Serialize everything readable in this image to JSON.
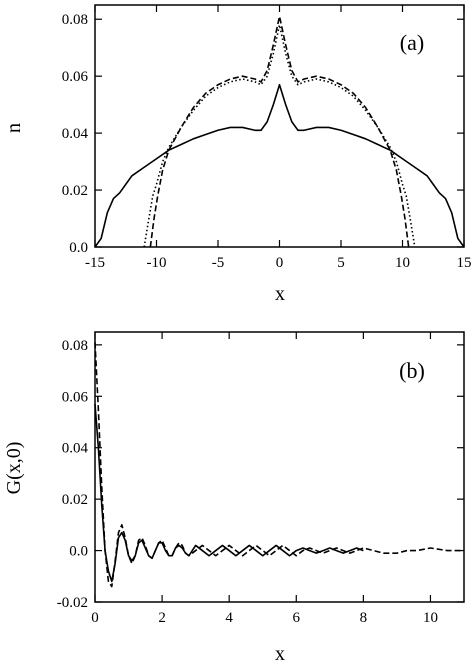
{
  "chart_data": [
    {
      "type": "line",
      "panel_label": "(a)",
      "xlabel": "x",
      "ylabel": "n",
      "xlim": [
        -15,
        15
      ],
      "ylim": [
        0,
        0.085
      ],
      "xticks": [
        -15,
        -10,
        -5,
        0,
        5,
        10,
        15
      ],
      "xtick_labels": [
        "-15",
        "-10",
        "-5",
        "0",
        "5",
        "10",
        "15"
      ],
      "yticks": [
        0,
        0.02,
        0.04,
        0.06,
        0.08
      ],
      "ytick_labels": [
        "0.0",
        "0.02",
        "0.04",
        "0.06",
        "0.08"
      ],
      "series": [
        {
          "style": "solid",
          "points": [
            [
              -15,
              0
            ],
            [
              -14.5,
              0.003
            ],
            [
              -14,
              0.012
            ],
            [
              -13.5,
              0.017
            ],
            [
              -13,
              0.019
            ],
            [
              -12.5,
              0.022
            ],
            [
              -12,
              0.025
            ],
            [
              -11,
              0.028
            ],
            [
              -10,
              0.031
            ],
            [
              -9,
              0.034
            ],
            [
              -8,
              0.036
            ],
            [
              -7,
              0.038
            ],
            [
              -6,
              0.0395
            ],
            [
              -5,
              0.041
            ],
            [
              -4,
              0.042
            ],
            [
              -3,
              0.042
            ],
            [
              -2,
              0.041
            ],
            [
              -1.5,
              0.041
            ],
            [
              -1,
              0.044
            ],
            [
              -0.5,
              0.05
            ],
            [
              0,
              0.057
            ],
            [
              0.5,
              0.05
            ],
            [
              1,
              0.044
            ],
            [
              1.5,
              0.041
            ],
            [
              2,
              0.041
            ],
            [
              3,
              0.042
            ],
            [
              4,
              0.042
            ],
            [
              5,
              0.041
            ],
            [
              6,
              0.0395
            ],
            [
              7,
              0.038
            ],
            [
              8,
              0.036
            ],
            [
              9,
              0.034
            ],
            [
              10,
              0.031
            ],
            [
              11,
              0.028
            ],
            [
              12,
              0.025
            ],
            [
              12.5,
              0.022
            ],
            [
              13,
              0.019
            ],
            [
              13.5,
              0.017
            ],
            [
              14,
              0.012
            ],
            [
              14.5,
              0.003
            ],
            [
              15,
              0
            ]
          ]
        },
        {
          "style": "dotted",
          "points": [
            [
              -11,
              0
            ],
            [
              -10.7,
              0.008
            ],
            [
              -10.3,
              0.018
            ],
            [
              -10,
              0.022
            ],
            [
              -9.5,
              0.03
            ],
            [
              -9,
              0.035
            ],
            [
              -8,
              0.042
            ],
            [
              -7,
              0.048
            ],
            [
              -6,
              0.053
            ],
            [
              -5,
              0.056
            ],
            [
              -4,
              0.058
            ],
            [
              -3,
              0.059
            ],
            [
              -2,
              0.058
            ],
            [
              -1.5,
              0.057
            ],
            [
              -1,
              0.06
            ],
            [
              -0.5,
              0.068
            ],
            [
              0,
              0.078
            ],
            [
              0.5,
              0.068
            ],
            [
              1,
              0.06
            ],
            [
              1.5,
              0.057
            ],
            [
              2,
              0.058
            ],
            [
              3,
              0.059
            ],
            [
              4,
              0.058
            ],
            [
              5,
              0.056
            ],
            [
              6,
              0.053
            ],
            [
              7,
              0.048
            ],
            [
              8,
              0.042
            ],
            [
              9,
              0.035
            ],
            [
              9.5,
              0.03
            ],
            [
              10,
              0.022
            ],
            [
              10.3,
              0.018
            ],
            [
              10.7,
              0.008
            ],
            [
              11,
              0
            ]
          ]
        },
        {
          "style": "dashed",
          "points": [
            [
              -10.5,
              0
            ],
            [
              -10.2,
              0.01
            ],
            [
              -9.9,
              0.018
            ],
            [
              -9.5,
              0.027
            ],
            [
              -9,
              0.034
            ],
            [
              -8,
              0.042
            ],
            [
              -7,
              0.049
            ],
            [
              -6,
              0.054
            ],
            [
              -5,
              0.057
            ],
            [
              -4,
              0.059
            ],
            [
              -3,
              0.06
            ],
            [
              -2,
              0.059
            ],
            [
              -1.5,
              0.058
            ],
            [
              -1,
              0.062
            ],
            [
              -0.5,
              0.071
            ],
            [
              0,
              0.081
            ],
            [
              0.5,
              0.071
            ],
            [
              1,
              0.062
            ],
            [
              1.5,
              0.058
            ],
            [
              2,
              0.059
            ],
            [
              3,
              0.06
            ],
            [
              4,
              0.059
            ],
            [
              5,
              0.057
            ],
            [
              6,
              0.054
            ],
            [
              7,
              0.049
            ],
            [
              8,
              0.042
            ],
            [
              9,
              0.034
            ],
            [
              9.5,
              0.027
            ],
            [
              9.9,
              0.018
            ],
            [
              10.2,
              0.01
            ],
            [
              10.5,
              0
            ]
          ]
        }
      ]
    },
    {
      "type": "line",
      "panel_label": "(b)",
      "xlabel": "x",
      "ylabel": "G(x,0)",
      "xlim": [
        0,
        11
      ],
      "ylim": [
        -0.02,
        0.085
      ],
      "xticks": [
        0,
        2,
        4,
        6,
        8,
        10
      ],
      "xtick_labels": [
        "0",
        "2",
        "4",
        "6",
        "8",
        "10"
      ],
      "yticks": [
        -0.02,
        0,
        0.02,
        0.04,
        0.06,
        0.08
      ],
      "ytick_labels": [
        "-0.02",
        "0.0",
        "0.02",
        "0.04",
        "0.06",
        "0.08"
      ],
      "series": [
        {
          "style": "solid",
          "points": [
            [
              0,
              0.057
            ],
            [
              0.1,
              0.04
            ],
            [
              0.2,
              0.018
            ],
            [
              0.3,
              0.0
            ],
            [
              0.4,
              -0.008
            ],
            [
              0.5,
              -0.012
            ],
            [
              0.6,
              -0.005
            ],
            [
              0.7,
              0.005
            ],
            [
              0.8,
              0.007
            ],
            [
              0.9,
              0.004
            ],
            [
              1.0,
              -0.002
            ],
            [
              1.1,
              -0.004
            ],
            [
              1.2,
              -0.002
            ],
            [
              1.3,
              0.003
            ],
            [
              1.4,
              0.004
            ],
            [
              1.5,
              0.001
            ],
            [
              1.6,
              -0.002
            ],
            [
              1.7,
              -0.003
            ],
            [
              1.8,
              0.0
            ],
            [
              1.9,
              0.003
            ],
            [
              2.0,
              0.003
            ],
            [
              2.1,
              0.0
            ],
            [
              2.2,
              -0.002
            ],
            [
              2.3,
              -0.002
            ],
            [
              2.4,
              0.001
            ],
            [
              2.5,
              0.002
            ],
            [
              2.6,
              0.001
            ],
            [
              2.7,
              -0.001
            ],
            [
              2.8,
              -0.002
            ],
            [
              2.9,
              0.0
            ],
            [
              3.0,
              0.002
            ],
            [
              3.2,
              0.0
            ],
            [
              3.4,
              -0.002
            ],
            [
              3.6,
              0.0
            ],
            [
              3.8,
              0.002
            ],
            [
              4.0,
              0.0
            ],
            [
              4.2,
              -0.002
            ],
            [
              4.4,
              0.0
            ],
            [
              4.6,
              0.002
            ],
            [
              4.8,
              0.0
            ],
            [
              5.0,
              -0.002
            ],
            [
              5.2,
              0.0
            ],
            [
              5.4,
              0.002
            ],
            [
              5.6,
              0.0
            ],
            [
              5.8,
              -0.002
            ],
            [
              6.0,
              0.0
            ],
            [
              6.2,
              0.001
            ],
            [
              6.4,
              0.0
            ],
            [
              6.6,
              -0.001
            ],
            [
              6.8,
              0.0
            ],
            [
              7.0,
              0.001
            ],
            [
              7.2,
              0.0
            ],
            [
              7.4,
              -0.001
            ],
            [
              7.6,
              0.0
            ],
            [
              7.8,
              0.001
            ],
            [
              8.0,
              0.0
            ]
          ]
        },
        {
          "style": "dashed",
          "points": [
            [
              0,
              0.081
            ],
            [
              0.1,
              0.055
            ],
            [
              0.2,
              0.025
            ],
            [
              0.3,
              0.0
            ],
            [
              0.4,
              -0.012
            ],
            [
              0.5,
              -0.014
            ],
            [
              0.6,
              -0.004
            ],
            [
              0.7,
              0.007
            ],
            [
              0.8,
              0.01
            ],
            [
              0.9,
              0.005
            ],
            [
              1.0,
              -0.002
            ],
            [
              1.1,
              -0.005
            ],
            [
              1.2,
              -0.002
            ],
            [
              1.3,
              0.004
            ],
            [
              1.4,
              0.005
            ],
            [
              1.5,
              0.002
            ],
            [
              1.6,
              -0.002
            ],
            [
              1.7,
              -0.003
            ],
            [
              1.8,
              0.0
            ],
            [
              1.9,
              0.003
            ],
            [
              2.0,
              0.004
            ],
            [
              2.1,
              0.001
            ],
            [
              2.2,
              -0.002
            ],
            [
              2.3,
              -0.002
            ],
            [
              2.4,
              0.001
            ],
            [
              2.5,
              0.003
            ],
            [
              2.6,
              0.002
            ],
            [
              2.7,
              -0.001
            ],
            [
              2.8,
              -0.002
            ],
            [
              3.0,
              0.0
            ],
            [
              3.2,
              0.002
            ],
            [
              3.4,
              0.0
            ],
            [
              3.6,
              -0.002
            ],
            [
              3.8,
              0.0
            ],
            [
              4.0,
              0.002
            ],
            [
              4.2,
              0.0
            ],
            [
              4.4,
              -0.002
            ],
            [
              4.6,
              0.0
            ],
            [
              4.8,
              0.002
            ],
            [
              5.0,
              0.0
            ],
            [
              5.2,
              -0.002
            ],
            [
              5.4,
              0.0
            ],
            [
              5.6,
              0.002
            ],
            [
              5.8,
              0.0
            ],
            [
              6.0,
              -0.002
            ],
            [
              6.2,
              0.0
            ],
            [
              6.4,
              0.001
            ],
            [
              6.6,
              0.0
            ],
            [
              6.8,
              -0.001
            ],
            [
              7.0,
              0.0
            ],
            [
              7.2,
              0.001
            ],
            [
              7.4,
              0.0
            ],
            [
              7.6,
              -0.001
            ],
            [
              7.8,
              0.0
            ],
            [
              8.0,
              0.001
            ],
            [
              8.3,
              0.0
            ],
            [
              8.6,
              -0.001
            ],
            [
              9.0,
              -0.001
            ],
            [
              9.3,
              0.0
            ],
            [
              9.6,
              0.0
            ],
            [
              10.0,
              0.001
            ],
            [
              10.5,
              0.0
            ],
            [
              11.0,
              0.0
            ]
          ]
        }
      ]
    }
  ]
}
